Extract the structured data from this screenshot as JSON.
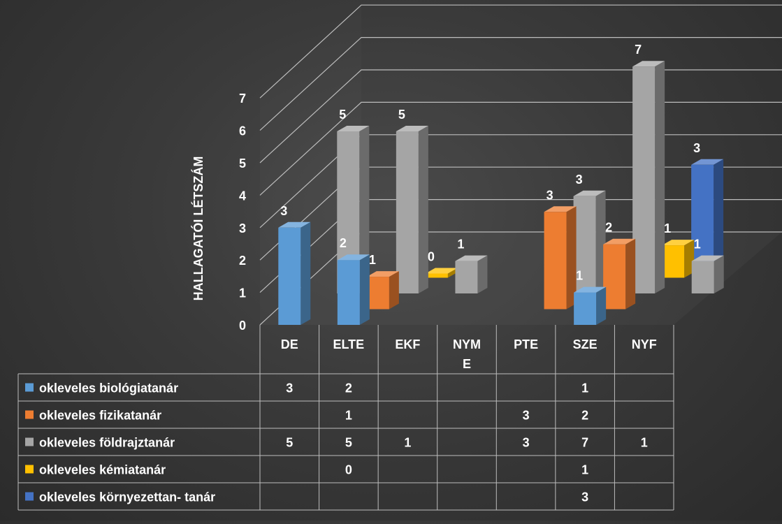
{
  "chart_data": {
    "type": "bar",
    "ylabel": "HALLAGATÓI LÉTSZÁM",
    "ylim": [
      0,
      7
    ],
    "yticks": [
      "0",
      "1",
      "2",
      "3",
      "4",
      "5",
      "6",
      "7"
    ],
    "grid": true,
    "legend": "data-table",
    "categories": [
      "DE",
      "ELTE",
      "EKF",
      "NYME",
      "PTE",
      "SZE",
      "NYF"
    ],
    "category_labels": [
      "DE",
      "ELTE",
      "EKF",
      "NYM\nE",
      "PTE",
      "SZE",
      "NYF"
    ],
    "series": [
      {
        "name": "okleveles biológiatanár",
        "color": "#5b9bd5",
        "values": [
          3,
          2,
          null,
          null,
          null,
          1,
          null
        ]
      },
      {
        "name": "okleveles fizikatanár",
        "color": "#ed7d31",
        "values": [
          null,
          1,
          null,
          null,
          3,
          2,
          null
        ]
      },
      {
        "name": "okleveles földrajztanár",
        "color": "#a5a5a5",
        "values": [
          5,
          5,
          1,
          null,
          3,
          7,
          1
        ]
      },
      {
        "name": "okleveles kémiatanár",
        "color": "#ffc000",
        "values": [
          null,
          0,
          null,
          null,
          null,
          1,
          null
        ]
      },
      {
        "name": "okleveles környezettan- tanár",
        "color": "#4472c4",
        "values": [
          null,
          null,
          null,
          null,
          null,
          3,
          null
        ]
      }
    ]
  }
}
